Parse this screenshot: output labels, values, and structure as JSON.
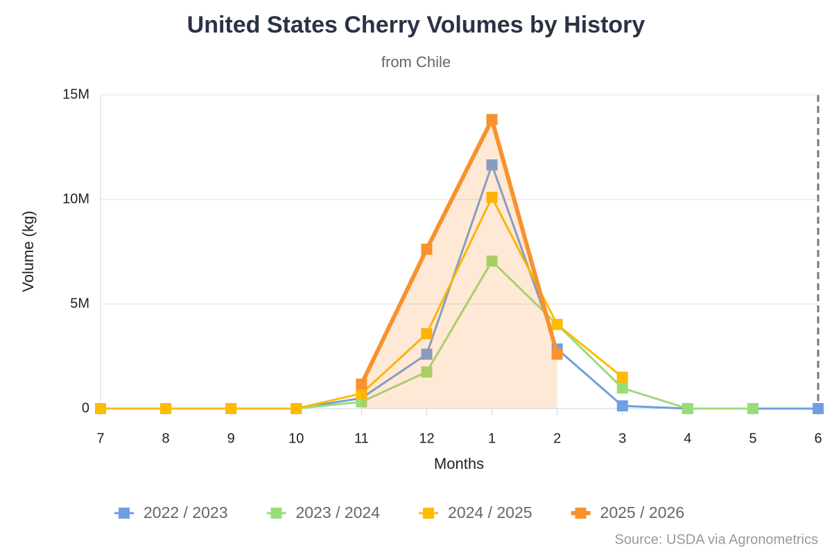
{
  "chart_data": {
    "type": "line",
    "title": "United States Cherry Volumes by History",
    "subtitle": "from Chile",
    "x_label": "Months",
    "y_label": "Volume (kg)",
    "source": "Source: USDA via Agronometrics",
    "categories": [
      "7",
      "8",
      "9",
      "10",
      "11",
      "12",
      "1",
      "2",
      "3",
      "4",
      "5",
      "6"
    ],
    "ylim": [
      0,
      15000000
    ],
    "yticks": [
      0,
      {
        "value": 5000000,
        "label": "5M"
      },
      {
        "value": 10000000,
        "label": "10M"
      },
      {
        "value": 15000000,
        "label": "15M"
      }
    ],
    "grid": true,
    "series": [
      {
        "name": "2022 / 2023",
        "color": "#6f9fe0",
        "values": [
          0,
          0,
          0,
          0,
          500000,
          2600000,
          11650000,
          2850000,
          130000,
          0,
          0,
          0
        ]
      },
      {
        "name": "2023 / 2024",
        "color": "#99dd77",
        "values": [
          0,
          0,
          0,
          0,
          320000,
          1750000,
          7050000,
          4020000,
          980000,
          0,
          0,
          null
        ]
      },
      {
        "name": "2024 / 2025",
        "color": "#ffbb00",
        "values": [
          0,
          0,
          0,
          0,
          720000,
          3580000,
          10100000,
          4020000,
          1500000,
          null,
          null,
          null
        ]
      },
      {
        "name": "2025 / 2026",
        "color": "#f7922e",
        "area": true,
        "values": [
          null,
          null,
          null,
          null,
          1170000,
          7620000,
          13820000,
          2600000,
          null,
          null,
          null,
          null
        ]
      }
    ]
  }
}
